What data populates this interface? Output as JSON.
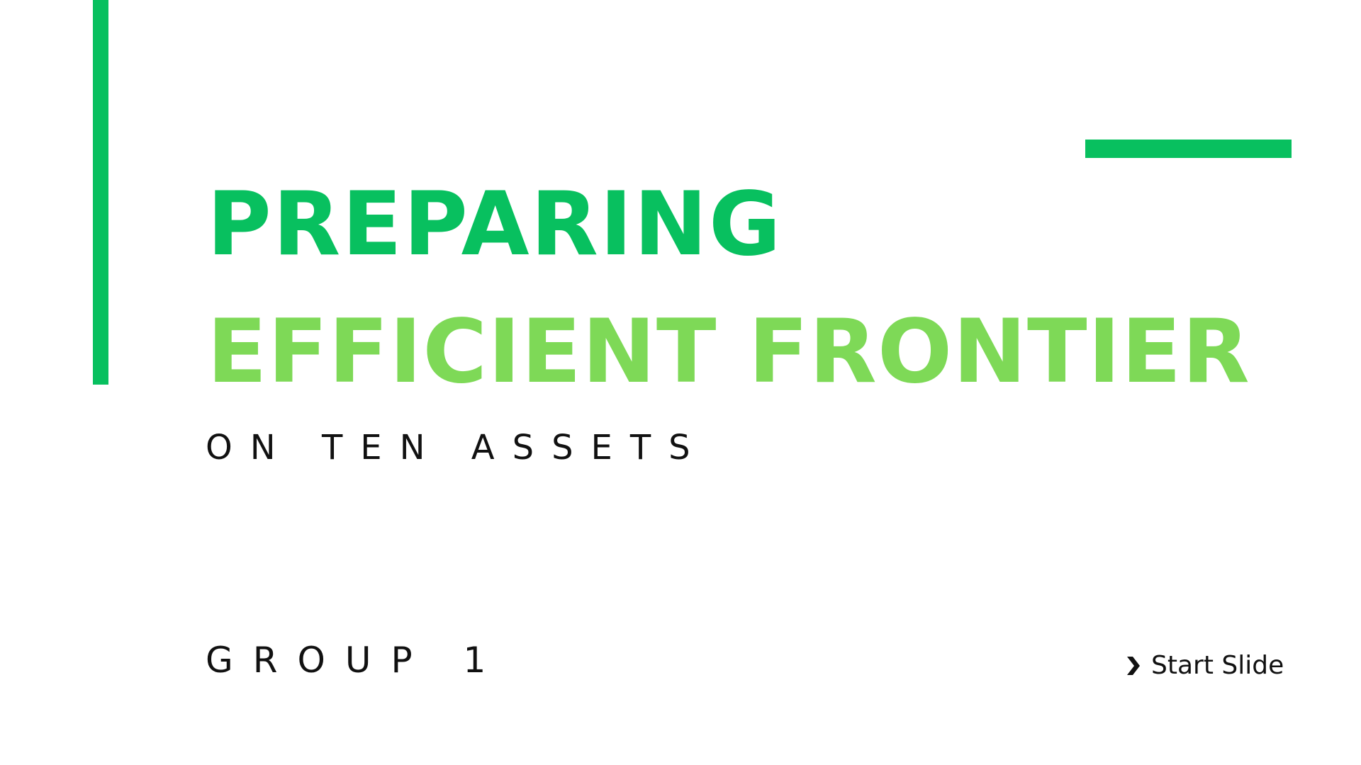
{
  "slide": {
    "title_line1": "PREPARING",
    "title_line2": "EFFICIENT FRONTIER",
    "subtitle": "ON TEN ASSETS",
    "group_label": "GROUP 1",
    "start_button": {
      "label": "Start Slide",
      "icon": "chevron-right-icon"
    }
  },
  "colors": {
    "accent_dark_green": "#08C05F",
    "accent_light_green": "#7ED957",
    "text": "#111111",
    "background": "#FFFFFF"
  }
}
